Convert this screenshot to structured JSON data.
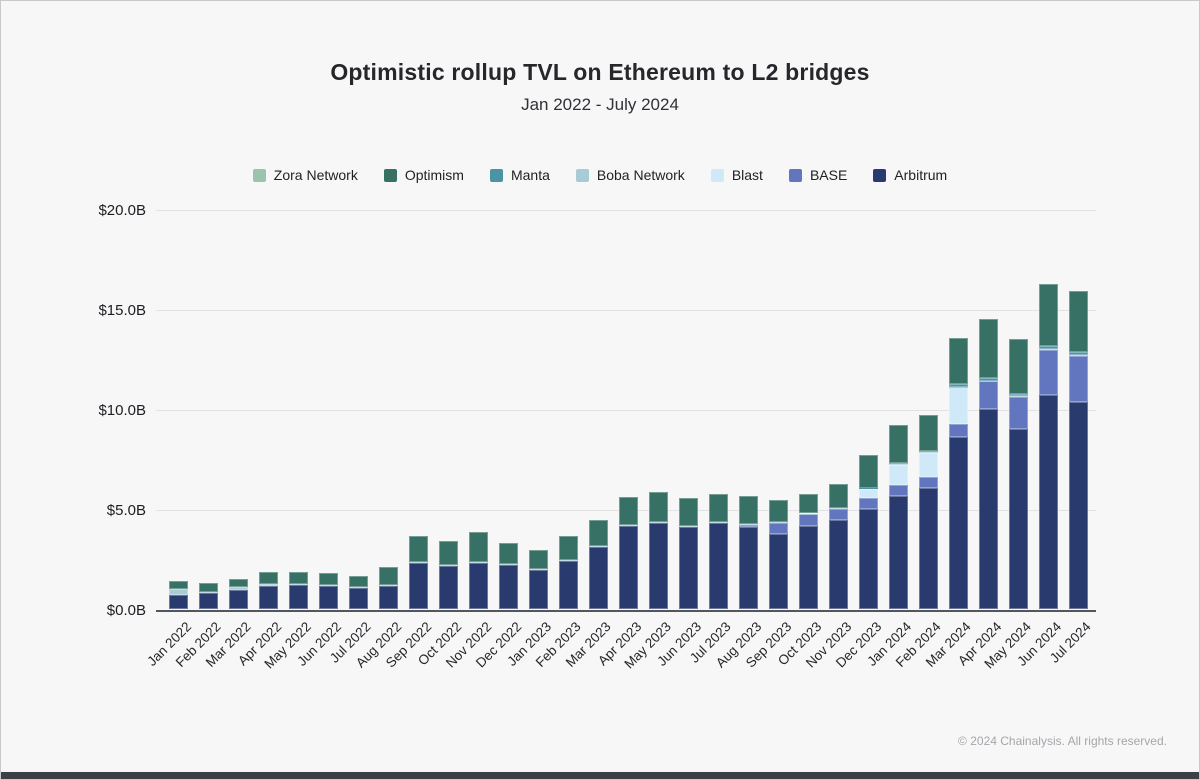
{
  "title": "Optimistic rollup TVL on Ethereum to L2 bridges",
  "subtitle": "Jan 2022 - July 2024",
  "footer": "© 2024 Chainalysis. All rights reserved.",
  "chart_data": {
    "type": "bar",
    "stacked": true,
    "title": "Optimistic rollup TVL on Ethereum to L2 bridges",
    "subtitle": "Jan 2022 - July 2024",
    "ylabel": "",
    "xlabel": "",
    "ylim": [
      0,
      20
    ],
    "grid": true,
    "legend_position": "top",
    "yticks": [
      {
        "value": 0,
        "label": "$0.0B"
      },
      {
        "value": 5,
        "label": "$5.0B"
      },
      {
        "value": 10,
        "label": "$10.0B"
      },
      {
        "value": 15,
        "label": "$15.0B"
      },
      {
        "value": 20,
        "label": "$20.0B"
      }
    ],
    "categories": [
      "Jan 2022",
      "Feb 2022",
      "Mar 2022",
      "Apr 2022",
      "May 2022",
      "Jun 2022",
      "Jul 2022",
      "Aug 2022",
      "Sep 2022",
      "Oct 2022",
      "Nov 2022",
      "Dec 2022",
      "Jan 2023",
      "Feb 2023",
      "Mar 2023",
      "Apr 2023",
      "May 2023",
      "Jun 2023",
      "Jul 2023",
      "Aug 2023",
      "Sep 2023",
      "Oct 2023",
      "Nov 2023",
      "Dec 2023",
      "Jan 2024",
      "Feb 2024",
      "Mar 2024",
      "Apr 2024",
      "May 2024",
      "Jun 2024",
      "Jul 2024"
    ],
    "units": "$B",
    "stack_order": [
      "Arbitrum",
      "BASE",
      "Blast",
      "Boba Network",
      "Manta",
      "Optimism",
      "Zora Network"
    ],
    "series": [
      {
        "name": "Zora Network",
        "color": "#9cc4ad",
        "values": [
          0,
          0,
          0,
          0,
          0,
          0,
          0,
          0,
          0,
          0,
          0,
          0,
          0,
          0,
          0,
          0,
          0,
          0,
          0.01,
          0.02,
          0.02,
          0.02,
          0.02,
          0.02,
          0.02,
          0.02,
          0.02,
          0.02,
          0.02,
          0.02,
          0.02
        ]
      },
      {
        "name": "Optimism",
        "color": "#377064",
        "values": [
          0.37,
          0.43,
          0.42,
          0.64,
          0.62,
          0.6,
          0.56,
          0.88,
          1.3,
          1.22,
          1.48,
          1.06,
          0.93,
          1.18,
          1.34,
          1.4,
          1.5,
          1.43,
          1.38,
          1.4,
          1.1,
          0.95,
          1.2,
          1.65,
          1.88,
          1.8,
          2.33,
          2.97,
          2.74,
          3.1,
          3.05
        ]
      },
      {
        "name": "Manta",
        "color": "#4c94a5",
        "values": [
          0,
          0,
          0,
          0,
          0,
          0,
          0,
          0,
          0,
          0,
          0,
          0,
          0,
          0,
          0,
          0,
          0,
          0,
          0,
          0,
          0.01,
          0.02,
          0.02,
          0.03,
          0.05,
          0.08,
          0.12,
          0.11,
          0.11,
          0.14,
          0.15
        ]
      },
      {
        "name": "Boba Network",
        "color": "#a7ccd8",
        "values": [
          0.33,
          0.09,
          0.14,
          0.06,
          0.05,
          0.05,
          0.05,
          0.05,
          0.05,
          0.05,
          0.05,
          0.04,
          0.04,
          0.05,
          0.05,
          0.05,
          0.05,
          0.05,
          0.05,
          0.04,
          0.04,
          0.04,
          0.04,
          0.04,
          0.04,
          0.04,
          0.04,
          0.04,
          0.04,
          0.04,
          0.04
        ]
      },
      {
        "name": "Blast",
        "color": "#cfe9f9",
        "values": [
          0,
          0,
          0,
          0,
          0,
          0,
          0,
          0,
          0,
          0,
          0,
          0,
          0,
          0,
          0,
          0,
          0,
          0,
          0,
          0,
          0,
          0,
          0,
          0.45,
          1.0,
          1.22,
          1.85,
          0,
          0,
          0,
          0
        ]
      },
      {
        "name": "BASE",
        "color": "#6276c0",
        "values": [
          0,
          0,
          0,
          0,
          0,
          0,
          0,
          0,
          0,
          0,
          0,
          0,
          0,
          0,
          0,
          0,
          0,
          0,
          0,
          0.12,
          0.55,
          0.58,
          0.55,
          0.55,
          0.57,
          0.53,
          0.63,
          1.38,
          1.6,
          2.25,
          2.3
        ]
      },
      {
        "name": "Arbitrum",
        "color": "#293a6e",
        "values": [
          0.68,
          0.78,
          0.94,
          1.17,
          1.2,
          1.17,
          1.05,
          1.17,
          2.3,
          2.15,
          2.3,
          2.2,
          1.97,
          2.42,
          3.08,
          4.13,
          4.3,
          4.08,
          4.3,
          4.1,
          3.75,
          4.15,
          4.45,
          5.0,
          5.65,
          6.05,
          8.6,
          10.0,
          9.0,
          10.7,
          10.35
        ]
      }
    ]
  }
}
